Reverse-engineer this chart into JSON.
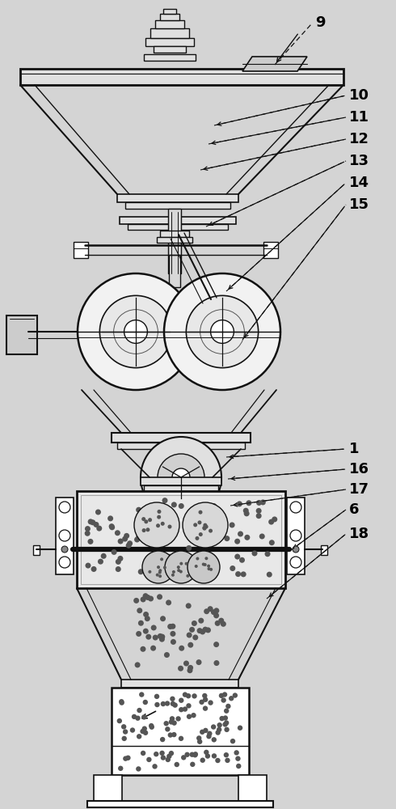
{
  "bg_color": "#d4d4d4",
  "line_color": "#111111",
  "fig_width": 4.9,
  "fig_height": 10.0,
  "dpi": 100
}
